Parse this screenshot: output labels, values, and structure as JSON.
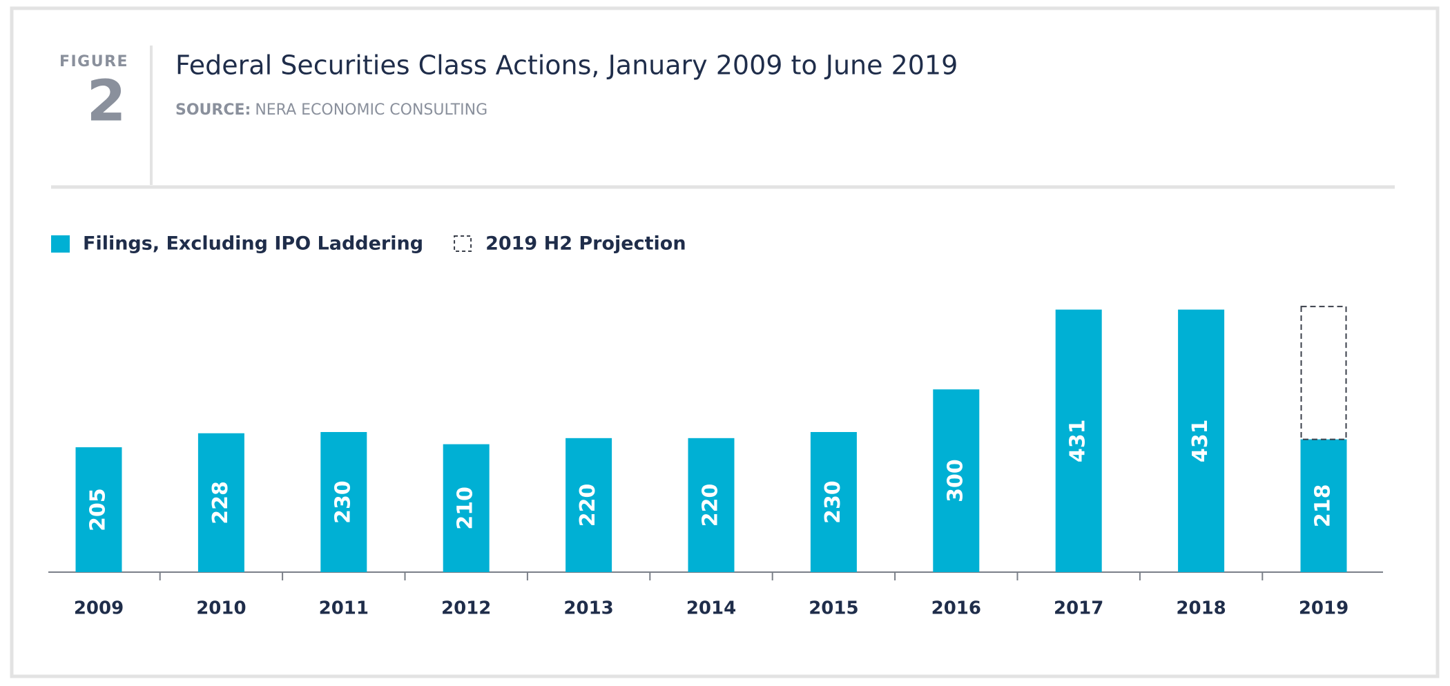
{
  "chart_data": {
    "type": "bar",
    "figure_label": "FIGURE",
    "figure_number": "2",
    "title": "Federal Securities Class Actions, January 2009 to June 2019",
    "source_label": "SOURCE:",
    "source": "NERA ECONOMIC CONSULTING",
    "categories": [
      "2009",
      "2010",
      "2011",
      "2012",
      "2013",
      "2014",
      "2015",
      "2016",
      "2017",
      "2018",
      "2019"
    ],
    "stacked": true,
    "series": [
      {
        "name": "Filings, Excluding IPO Laddering",
        "color": "#00b0d4",
        "style": "solid",
        "values": [
          205,
          228,
          230,
          210,
          220,
          220,
          230,
          300,
          431,
          431,
          218
        ]
      },
      {
        "name": "2019 H2 Projection",
        "color": "#3a3f4a",
        "style": "dashed",
        "values": [
          null,
          null,
          null,
          null,
          null,
          null,
          null,
          null,
          null,
          null,
          218
        ]
      }
    ],
    "ylim": [
      0,
      460
    ],
    "legend": "top-left"
  }
}
